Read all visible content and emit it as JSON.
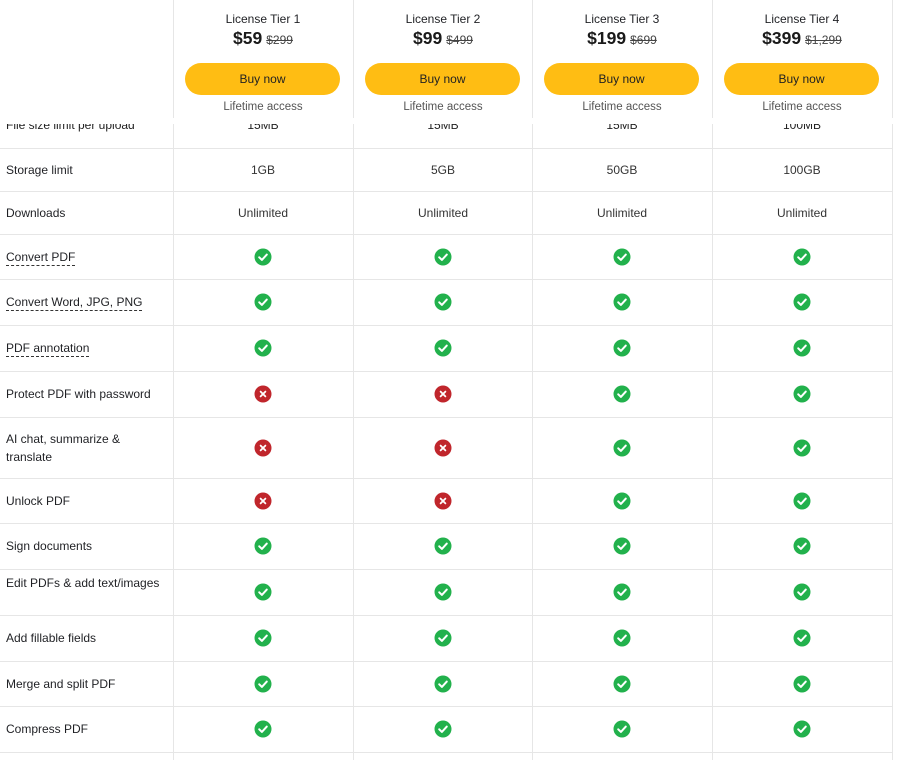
{
  "tiers": [
    {
      "name": "License Tier 1",
      "price": "$59",
      "old_price": "$299",
      "button": "Buy now",
      "note": "Lifetime access",
      "upload_limit": "15MB"
    },
    {
      "name": "License Tier 2",
      "price": "$99",
      "old_price": "$499",
      "button": "Buy now",
      "note": "Lifetime access",
      "upload_limit": "15MB"
    },
    {
      "name": "License Tier 3",
      "price": "$199",
      "old_price": "$699",
      "button": "Buy now",
      "note": "Lifetime access",
      "upload_limit": "15MB"
    },
    {
      "name": "License Tier 4",
      "price": "$399",
      "old_price": "$1,299",
      "button": "Buy now",
      "note": "Lifetime access",
      "upload_limit": "100MB"
    }
  ],
  "partial_row_label": "File size limit per upload",
  "rows": [
    {
      "label": "Storage limit",
      "values": [
        "1GB",
        "5GB",
        "50GB",
        "100GB"
      ]
    },
    {
      "label": "Downloads",
      "values": [
        "Unlimited",
        "Unlimited",
        "Unlimited",
        "Unlimited"
      ]
    },
    {
      "label": "Convert PDF",
      "dashed": true,
      "values": [
        "check",
        "check",
        "check",
        "check"
      ]
    },
    {
      "label": "Convert Word, JPG, PNG",
      "dashed": true,
      "values": [
        "check",
        "check",
        "check",
        "check"
      ]
    },
    {
      "label": "PDF annotation",
      "dashed": true,
      "values": [
        "check",
        "check",
        "check",
        "check"
      ]
    },
    {
      "label": "Protect PDF with password",
      "values": [
        "cross",
        "cross",
        "check",
        "check"
      ]
    },
    {
      "label": "AI chat, summarize & translate",
      "values": [
        "cross",
        "cross",
        "check",
        "check"
      ]
    },
    {
      "label": "Unlock PDF",
      "values": [
        "cross",
        "cross",
        "check",
        "check"
      ]
    },
    {
      "label": "Sign documents",
      "values": [
        "check",
        "check",
        "check",
        "check"
      ]
    },
    {
      "label": "Edit PDFs & add text/images",
      "values": [
        "check",
        "check",
        "check",
        "check"
      ]
    },
    {
      "label": "Add fillable fields",
      "values": [
        "check",
        "check",
        "check",
        "check"
      ]
    },
    {
      "label": "Merge and split PDF",
      "values": [
        "check",
        "check",
        "check",
        "check"
      ]
    },
    {
      "label": "Compress PDF",
      "values": [
        "check",
        "check",
        "check",
        "check"
      ]
    }
  ],
  "colors": {
    "button": "#ffbd13",
    "check": "#22b14c",
    "cross": "#c0262c",
    "border": "#e6e6e6"
  },
  "icons": {
    "check": "check-circle-icon",
    "cross": "x-circle-icon"
  }
}
